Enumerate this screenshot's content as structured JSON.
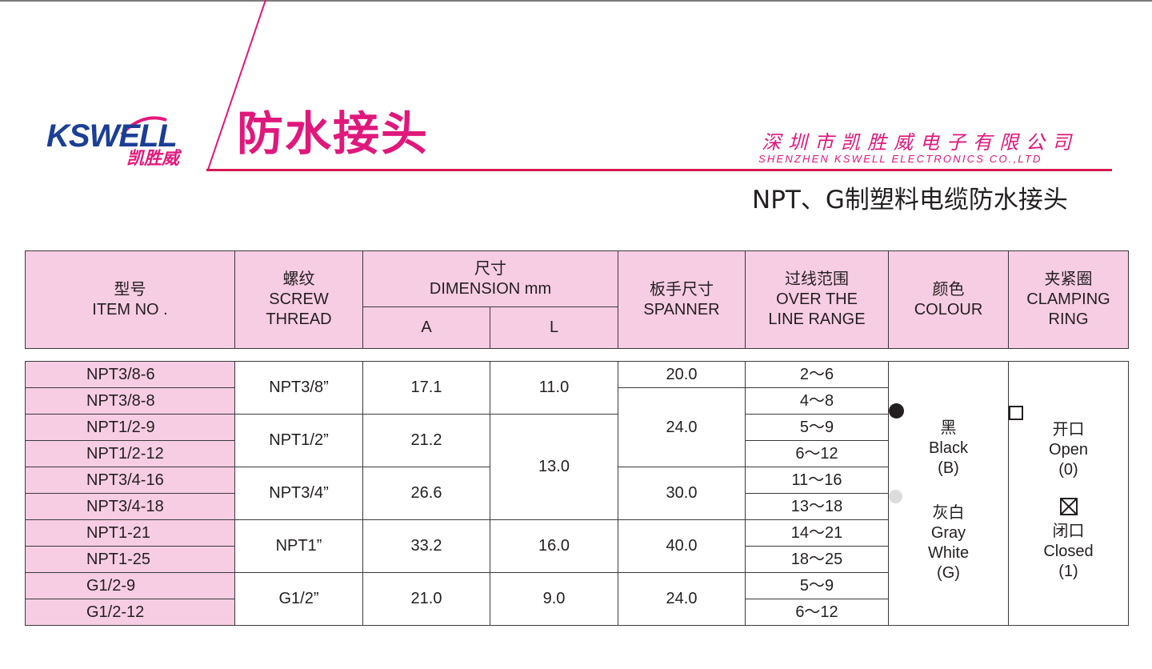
{
  "brand": {
    "logo_text": "KSWELL",
    "logo_cn": "凯胜威",
    "headline": "防水接头",
    "company_cn": "深圳市凯胜威电子有限公司",
    "company_en": "SHENZHEN KSWELL ELECTRONICS CO.,LTD",
    "subtitle": "NPT、G制塑料电缆防水接头",
    "colors": {
      "magenta": "#e0187c",
      "navy": "#1b3f95",
      "header_fill": "#f7cde3",
      "rule_red": "#d7194f"
    }
  },
  "table": {
    "headers": {
      "item_cn": "型号",
      "item_en": "ITEM NO .",
      "thread_cn": "螺纹",
      "thread_en1": "SCREW",
      "thread_en2": "THREAD",
      "dim_cn": "尺寸",
      "dim_en": "DIMENSION mm",
      "dim_a": "A",
      "dim_l": "L",
      "spanner_cn": "板手尺寸",
      "spanner_en": "SPANNER",
      "range_cn": "过线范围",
      "range_en1": "OVER THE",
      "range_en2": "LINE RANGE",
      "colour_cn": "颜色",
      "colour_en": "COLOUR",
      "ring_cn": "夹紧圈",
      "ring_en1": "CLAMPING",
      "ring_en2": "RING"
    },
    "items": [
      "NPT3/8-6",
      "NPT3/8-8",
      "NPT1/2-9",
      "NPT1/2-12",
      "NPT3/4-16",
      "NPT3/4-18",
      "NPT1-21",
      "NPT1-25",
      "G1/2-9",
      "G1/2-12"
    ],
    "threads": [
      "NPT3/8”",
      "NPT1/2”",
      "NPT3/4”",
      "NPT1”",
      "G1/2”"
    ],
    "dim_a": [
      "17.1",
      "21.2",
      "26.6",
      "33.2",
      "21.0"
    ],
    "dim_l": [
      "11.0",
      "13.0",
      "16.0",
      "9.0"
    ],
    "spanner": [
      "20.0",
      "24.0",
      "30.0",
      "40.0",
      "24.0"
    ],
    "ranges": [
      "2～6",
      "4～8",
      "5～9",
      "6～12",
      "11～16",
      "13～18",
      "14～21",
      "18～25",
      "5～9",
      "6～12"
    ],
    "colour": {
      "black_cn": "黑",
      "black_en": "Black",
      "black_code": "(B)",
      "gray_cn": "灰白",
      "gray_en1": "Gray",
      "gray_en2": "White",
      "gray_code": "(G)"
    },
    "ring": {
      "open_cn": "开口",
      "open_en": "Open",
      "open_code": "(0)",
      "closed_cn": "闭口",
      "closed_en": "Closed",
      "closed_code": "(1)"
    }
  }
}
